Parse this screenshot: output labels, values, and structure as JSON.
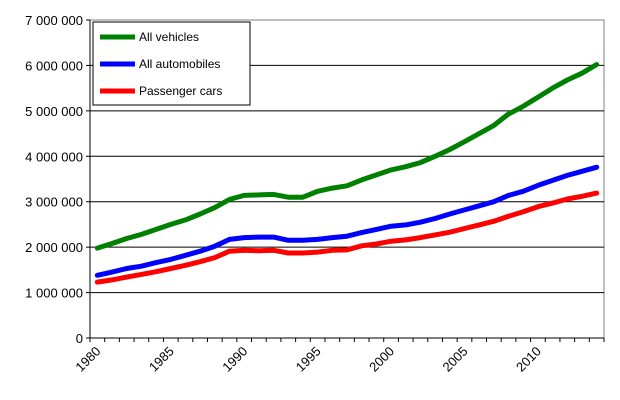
{
  "chart_data": {
    "type": "line",
    "title": "",
    "xlabel": "",
    "ylabel": "",
    "x": [
      1980,
      1981,
      1982,
      1983,
      1984,
      1985,
      1986,
      1987,
      1988,
      1989,
      1990,
      1991,
      1992,
      1993,
      1994,
      1995,
      1996,
      1997,
      1998,
      1999,
      2000,
      2001,
      2002,
      2003,
      2004,
      2005,
      2006,
      2007,
      2008,
      2009,
      2010,
      2011,
      2012,
      2013,
      2014
    ],
    "xticks": [
      "1980",
      "1985",
      "1990",
      "1995",
      "2000",
      "2005",
      "2010"
    ],
    "yticks": [
      "0",
      "1 000 000",
      "2 000 000",
      "3 000 000",
      "4 000 000",
      "5 000 000",
      "6 000 000",
      "7 000 000"
    ],
    "ylim": [
      0,
      7000000
    ],
    "grid": "horizontal",
    "legend_position": "top-left",
    "series": [
      {
        "name": "All vehicles",
        "color": "#008000",
        "values": [
          1980000,
          2080000,
          2190000,
          2280000,
          2390000,
          2500000,
          2600000,
          2730000,
          2870000,
          3050000,
          3140000,
          3150000,
          3160000,
          3100000,
          3100000,
          3230000,
          3300000,
          3350000,
          3480000,
          3590000,
          3700000,
          3770000,
          3860000,
          4000000,
          4150000,
          4320000,
          4500000,
          4680000,
          4930000,
          5100000,
          5300000,
          5500000,
          5680000,
          5830000,
          6020000
        ]
      },
      {
        "name": "All automobiles",
        "color": "#0000ff",
        "values": [
          1380000,
          1450000,
          1530000,
          1580000,
          1660000,
          1730000,
          1820000,
          1910000,
          2020000,
          2170000,
          2210000,
          2220000,
          2220000,
          2150000,
          2150000,
          2170000,
          2210000,
          2240000,
          2320000,
          2390000,
          2460000,
          2490000,
          2550000,
          2630000,
          2730000,
          2820000,
          2910000,
          3000000,
          3140000,
          3230000,
          3360000,
          3470000,
          3580000,
          3670000,
          3760000
        ]
      },
      {
        "name": "Passenger cars",
        "color": "#ff0000",
        "values": [
          1230000,
          1280000,
          1340000,
          1400000,
          1460000,
          1530000,
          1600000,
          1680000,
          1770000,
          1910000,
          1930000,
          1920000,
          1930000,
          1870000,
          1870000,
          1890000,
          1930000,
          1940000,
          2030000,
          2070000,
          2130000,
          2160000,
          2210000,
          2270000,
          2330000,
          2410000,
          2490000,
          2570000,
          2680000,
          2780000,
          2890000,
          2970000,
          3060000,
          3120000,
          3190000
        ]
      }
    ]
  }
}
